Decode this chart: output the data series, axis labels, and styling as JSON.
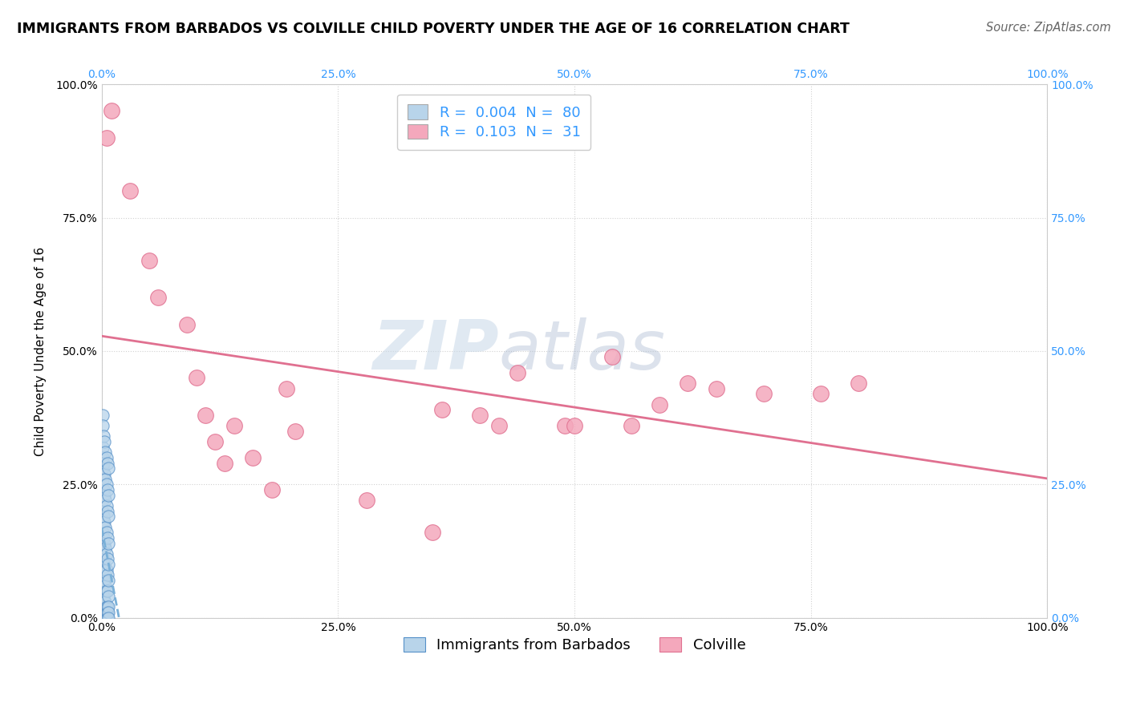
{
  "title": "IMMIGRANTS FROM BARBADOS VS COLVILLE CHILD POVERTY UNDER THE AGE OF 16 CORRELATION CHART",
  "source": "Source: ZipAtlas.com",
  "ylabel": "Child Poverty Under the Age of 16",
  "xlim": [
    0.0,
    1.0
  ],
  "ylim": [
    0.0,
    1.0
  ],
  "xticks": [
    0.0,
    0.25,
    0.5,
    0.75,
    1.0
  ],
  "yticks": [
    0.0,
    0.25,
    0.5,
    0.75,
    1.0
  ],
  "xtick_labels_black": [
    "0.0%",
    "25.0%",
    "50.0%",
    "75.0%",
    "100.0%"
  ],
  "ytick_labels_black": [
    "0.0%",
    "25.0%",
    "50.0%",
    "75.0%",
    "100.0%"
  ],
  "ytick_labels_blue": [
    "0.0%",
    "25.0%",
    "50.0%",
    "75.0%",
    "100.0%"
  ],
  "xtick_labels_blue": [
    "0.0%",
    "25.0%",
    "50.0%",
    "75.0%",
    "100.0%"
  ],
  "watermark_zip": "ZIP",
  "watermark_atlas": "atlas",
  "series1_name": "Immigrants from Barbados",
  "series1_scatter_color": "#b8d4ea",
  "series1_scatter_edge": "#5590c8",
  "series1_line_color": "#7ab0d8",
  "series2_name": "Colville",
  "series2_scatter_color": "#f4a8bc",
  "series2_scatter_edge": "#e07090",
  "series2_line_color": "#e07090",
  "legend1_color": "#b8d4ea",
  "legend2_color": "#f4a8bc",
  "legend1_text_r": "R = ",
  "legend1_val_r": "0.004",
  "legend1_text_n": "  N = ",
  "legend1_val_n": "80",
  "legend2_text_r": "R = ",
  "legend2_val_r": "0.103",
  "legend2_text_n": "  N = ",
  "legend2_val_n": "31",
  "blue_color": "#3399ff",
  "grid_color": "#cccccc",
  "blue_x": [
    0.001,
    0.001,
    0.001,
    0.001,
    0.001,
    0.001,
    0.001,
    0.001,
    0.001,
    0.001,
    0.001,
    0.001,
    0.001,
    0.001,
    0.001,
    0.001,
    0.001,
    0.001,
    0.001,
    0.001,
    0.002,
    0.002,
    0.002,
    0.002,
    0.002,
    0.002,
    0.002,
    0.002,
    0.002,
    0.002,
    0.003,
    0.003,
    0.003,
    0.003,
    0.003,
    0.003,
    0.003,
    0.003,
    0.003,
    0.003,
    0.004,
    0.004,
    0.004,
    0.004,
    0.004,
    0.004,
    0.004,
    0.004,
    0.004,
    0.004,
    0.005,
    0.005,
    0.005,
    0.005,
    0.005,
    0.005,
    0.005,
    0.005,
    0.005,
    0.005,
    0.006,
    0.006,
    0.006,
    0.006,
    0.006,
    0.006,
    0.006,
    0.006,
    0.006,
    0.006,
    0.007,
    0.007,
    0.007,
    0.007,
    0.007,
    0.007,
    0.007,
    0.007,
    0.007,
    0.007
  ],
  "blue_y": [
    0.38,
    0.32,
    0.28,
    0.22,
    0.18,
    0.14,
    0.1,
    0.06,
    0.04,
    0.01,
    0.36,
    0.3,
    0.26,
    0.2,
    0.16,
    0.12,
    0.08,
    0.05,
    0.02,
    0.0,
    0.34,
    0.29,
    0.24,
    0.19,
    0.15,
    0.11,
    0.07,
    0.04,
    0.02,
    0.0,
    0.33,
    0.27,
    0.23,
    0.18,
    0.14,
    0.1,
    0.07,
    0.03,
    0.01,
    0.0,
    0.31,
    0.26,
    0.22,
    0.17,
    0.13,
    0.09,
    0.06,
    0.03,
    0.01,
    0.0,
    0.3,
    0.25,
    0.21,
    0.16,
    0.12,
    0.09,
    0.05,
    0.02,
    0.01,
    0.0,
    0.29,
    0.24,
    0.2,
    0.15,
    0.11,
    0.08,
    0.05,
    0.02,
    0.01,
    0.0,
    0.28,
    0.23,
    0.19,
    0.14,
    0.1,
    0.07,
    0.04,
    0.02,
    0.01,
    0.0
  ],
  "pink_x": [
    0.005,
    0.01,
    0.03,
    0.05,
    0.06,
    0.09,
    0.1,
    0.11,
    0.12,
    0.13,
    0.14,
    0.16,
    0.18,
    0.195,
    0.205,
    0.28,
    0.35,
    0.36,
    0.4,
    0.42,
    0.44,
    0.49,
    0.5,
    0.54,
    0.56,
    0.59,
    0.62,
    0.65,
    0.7,
    0.76,
    0.8
  ],
  "pink_y": [
    0.9,
    0.95,
    0.8,
    0.67,
    0.6,
    0.55,
    0.45,
    0.38,
    0.33,
    0.29,
    0.36,
    0.3,
    0.24,
    0.43,
    0.35,
    0.22,
    0.16,
    0.39,
    0.38,
    0.36,
    0.46,
    0.36,
    0.36,
    0.49,
    0.36,
    0.4,
    0.44,
    0.43,
    0.42,
    0.42,
    0.44
  ],
  "title_fontsize": 12.5,
  "axis_fontsize": 11,
  "tick_fontsize": 10,
  "legend_fontsize": 13,
  "source_fontsize": 10.5
}
